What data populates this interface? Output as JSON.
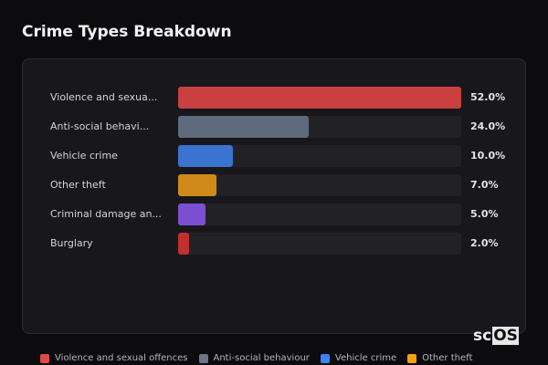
{
  "chart_data": {
    "type": "bar",
    "orientation": "horizontal",
    "title": "Crime Types Breakdown",
    "categories": [
      "Violence and sexua...",
      "Anti-social behavi...",
      "Vehicle crime",
      "Other theft",
      "Criminal damage an...",
      "Burglary"
    ],
    "values": [
      52.0,
      24.0,
      10.0,
      7.0,
      5.0,
      2.0
    ],
    "value_labels": [
      "52.0%",
      "24.0%",
      "10.0%",
      "7.0%",
      "5.0%",
      "2.0%"
    ],
    "colors": [
      "#c94040",
      "#5f6b7c",
      "#3a73d0",
      "#d08a18",
      "#7a4fd0",
      "#c0302f"
    ],
    "xlim": [
      0,
      52
    ],
    "legend": [
      {
        "label": "Violence and sexual offences",
        "color": "#e04848"
      },
      {
        "label": "Anti-social behaviour",
        "color": "#6b7689"
      },
      {
        "label": "Vehicle crime",
        "color": "#3b82f6"
      },
      {
        "label": "Other theft",
        "color": "#f5a00f"
      }
    ],
    "legend_position": "bottom"
  },
  "logo": {
    "prefix": "sc",
    "boxed": "OS"
  }
}
